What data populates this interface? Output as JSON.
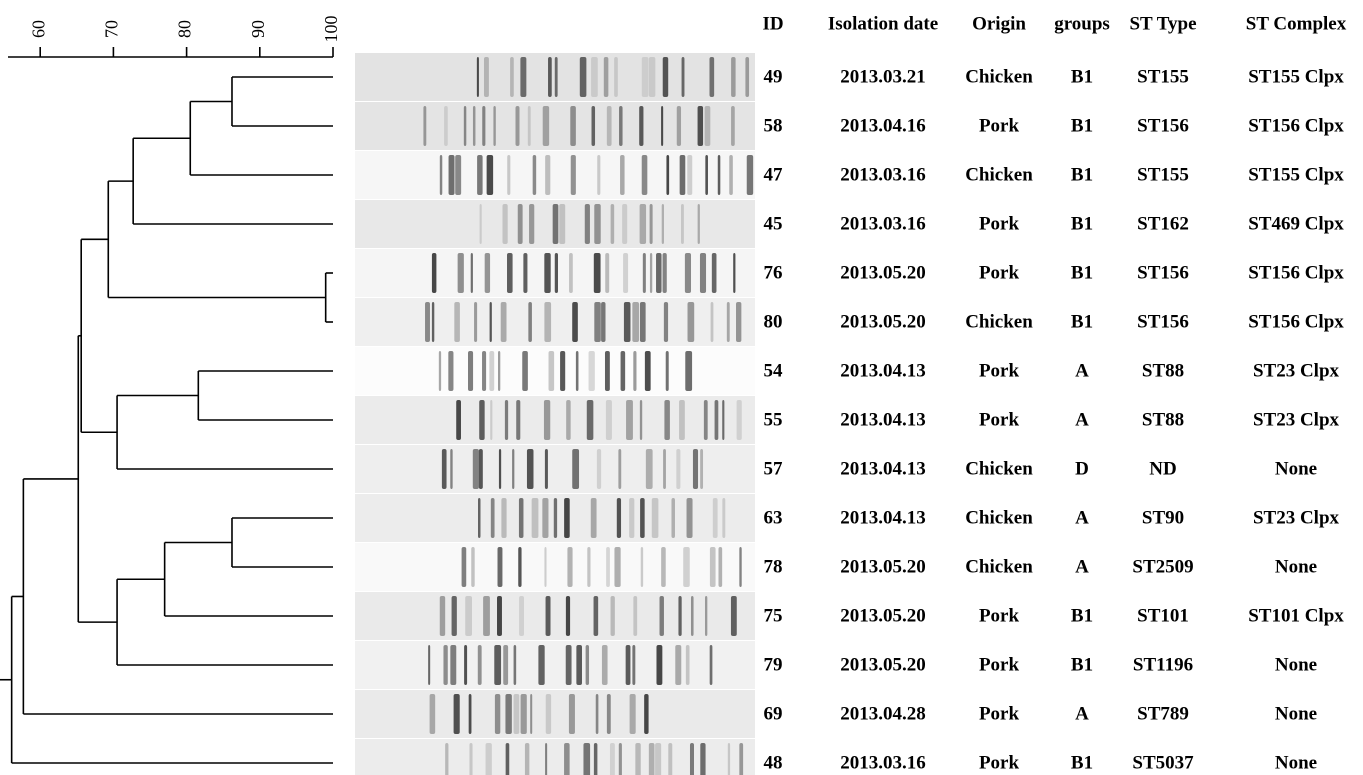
{
  "scale": {
    "lim": [
      55.6,
      100
    ],
    "ticks": [
      60,
      70,
      80,
      90,
      100
    ]
  },
  "dendrogram": {
    "similarity": 56.1,
    "children": [
      {
        "similarity": 57.7,
        "children": [
          {
            "similarity": 65.2,
            "children": [
              {
                "similarity": 65.6,
                "children": [
                  {
                    "similarity": 69.3,
                    "children": [
                      {
                        "similarity": 72.7,
                        "children": [
                          {
                            "similarity": 80.5,
                            "children": [
                              {
                                "similarity": 86.2,
                                "children": [
                                  null,
                                  null
                                ]
                              },
                              null
                            ]
                          },
                          null
                        ]
                      },
                      {
                        "similarity": 99.0,
                        "children": [
                          null,
                          null
                        ]
                      }
                    ]
                  },
                  {
                    "similarity": 70.5,
                    "children": [
                      {
                        "similarity": 81.6,
                        "children": [
                          null,
                          null
                        ]
                      },
                      null
                    ]
                  }
                ]
              },
              {
                "similarity": 70.5,
                "children": [
                  {
                    "similarity": 77.0,
                    "children": [
                      {
                        "similarity": 86.2,
                        "children": [
                          null,
                          null
                        ]
                      },
                      null
                    ]
                  },
                  null
                ]
              }
            ]
          },
          null
        ]
      },
      null
    ]
  },
  "table": {
    "header": [
      "ID",
      "Isolation date",
      "Origin",
      "groups",
      "ST Type",
      "ST Complex"
    ],
    "rows": [
      [
        "49",
        "2013.03.21",
        "Chicken",
        "B1",
        "ST155",
        "ST155 Clpx"
      ],
      [
        "58",
        "2013.04.16",
        "Pork",
        "B1",
        "ST156",
        "ST156 Clpx"
      ],
      [
        "47",
        "2013.03.16",
        "Chicken",
        "B1",
        "ST155",
        "ST155 Clpx"
      ],
      [
        "45",
        "2013.03.16",
        "Pork",
        "B1",
        "ST162",
        "ST469 Clpx"
      ],
      [
        "76",
        "2013.05.20",
        "Pork",
        "B1",
        "ST156",
        "ST156 Clpx"
      ],
      [
        "80",
        "2013.05.20",
        "Chicken",
        "B1",
        "ST156",
        "ST156 Clpx"
      ],
      [
        "54",
        "2013.04.13",
        "Pork",
        "A",
        "ST88",
        "ST23 Clpx"
      ],
      [
        "55",
        "2013.04.13",
        "Pork",
        "A",
        "ST88",
        "ST23 Clpx"
      ],
      [
        "57",
        "2013.04.13",
        "Chicken",
        "D",
        "ND",
        "None"
      ],
      [
        "63",
        "2013.04.13",
        "Chicken",
        "A",
        "ST90",
        "ST23 Clpx"
      ],
      [
        "78",
        "2013.05.20",
        "Chicken",
        "A",
        "ST2509",
        "None"
      ],
      [
        "75",
        "2013.05.20",
        "Pork",
        "B1",
        "ST101",
        "ST101 Clpx"
      ],
      [
        "79",
        "2013.05.20",
        "Pork",
        "B1",
        "ST1196",
        "None"
      ],
      [
        "69",
        "2013.04.28",
        "Pork",
        "A",
        "ST789",
        "None"
      ],
      [
        "48",
        "2013.03.16",
        "Pork",
        "B1",
        "ST5037",
        "None"
      ]
    ]
  }
}
